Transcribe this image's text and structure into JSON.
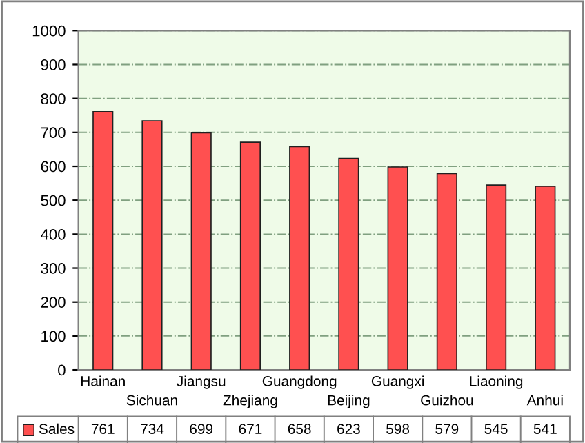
{
  "chart_data": {
    "type": "bar",
    "categories": [
      "Hainan",
      "Sichuan",
      "Jiangsu",
      "Zhejiang",
      "Guangdong",
      "Beijing",
      "Guangxi",
      "Guizhou",
      "Liaoning",
      "Anhui"
    ],
    "series": [
      {
        "name": "Sales",
        "color": "#ff5050",
        "values": [
          761,
          734,
          699,
          671,
          658,
          623,
          598,
          579,
          545,
          541
        ]
      }
    ],
    "ylim": [
      0,
      1000
    ],
    "yticks": [
      0,
      100,
      200,
      300,
      400,
      500,
      600,
      700,
      800,
      900,
      1000
    ],
    "grid": "y",
    "legend": "bottom",
    "data_labels": true
  }
}
